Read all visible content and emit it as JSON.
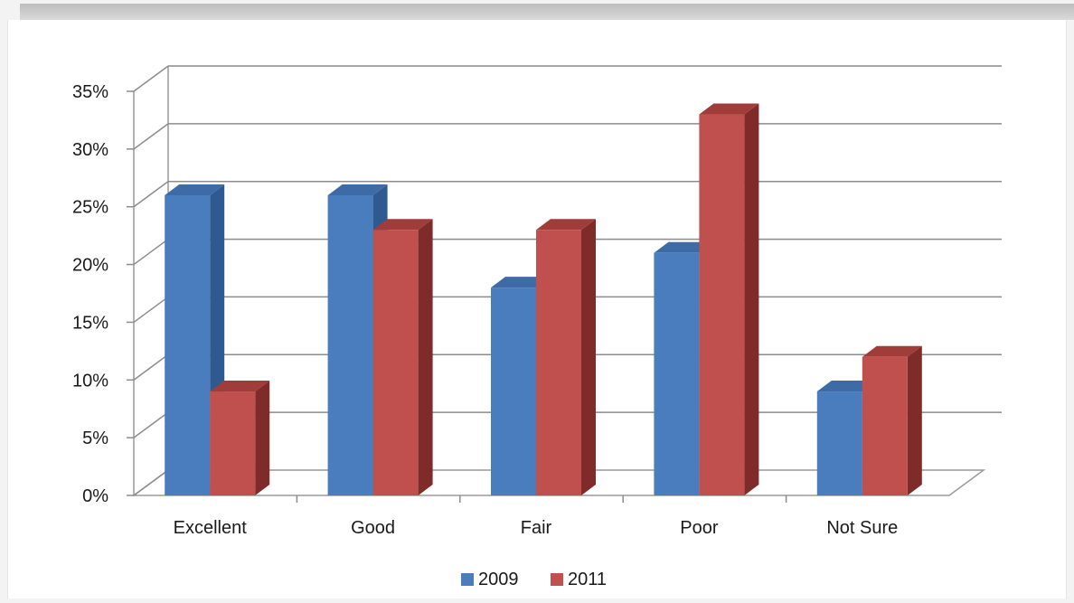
{
  "chart_data": {
    "type": "bar",
    "style": "3d-clustered-column",
    "categories": [
      "Excellent",
      "Good",
      "Fair",
      "Poor",
      "Not Sure"
    ],
    "series": [
      {
        "name": "2009",
        "values": [
          26,
          26,
          18,
          21,
          9
        ],
        "color": "#4a7dbd",
        "side_color": "#2f5a91",
        "top_color": "#3e6ba6"
      },
      {
        "name": "2011",
        "values": [
          9,
          23,
          23,
          33,
          12
        ],
        "color": "#c0504d",
        "side_color": "#7f2b29",
        "top_color": "#a03c3a"
      }
    ],
    "ylim": [
      0,
      35
    ],
    "y_ticks": [
      "0%",
      "5%",
      "10%",
      "15%",
      "20%",
      "25%",
      "30%",
      "35%"
    ],
    "grid": true,
    "legend": "bottom"
  }
}
